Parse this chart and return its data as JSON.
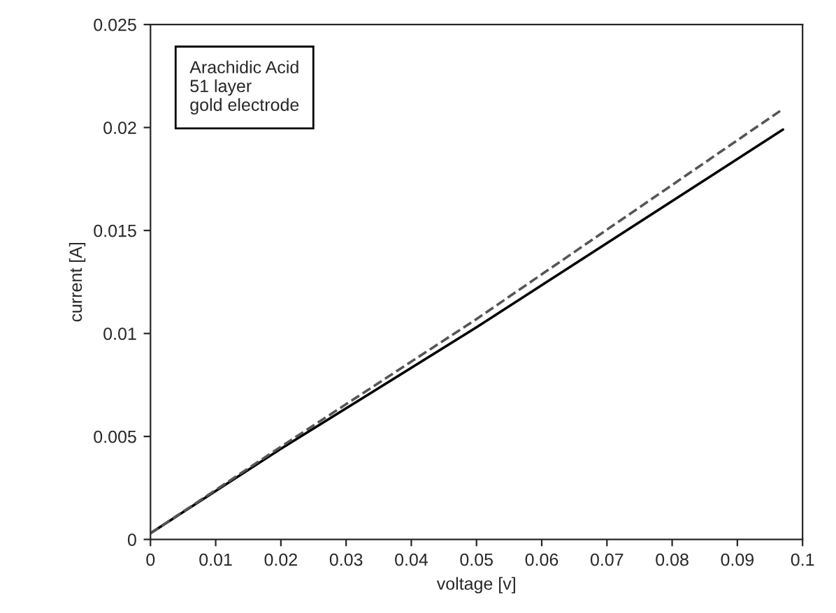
{
  "chart_data": {
    "type": "line",
    "xlabel": "voltage [v]",
    "ylabel": "current [A]",
    "annotations": [
      "Arachidic Acid\n51 layer\ngold electrode"
    ],
    "series": [
      {
        "color": "#000000",
        "line_style": "solid",
        "x": [
          0,
          0.02,
          0.05,
          0.097
        ],
        "values": [
          0.0003,
          0.0044,
          0.0103,
          0.0199
        ]
      },
      {
        "color": "#555555",
        "line_style": "dashed",
        "x": [
          0,
          0.02,
          0.05,
          0.097
        ],
        "values": [
          0.0003,
          0.0045,
          0.0107,
          0.0209
        ]
      }
    ],
    "xlim": [
      0,
      0.1
    ],
    "xticks": [
      0,
      0.01,
      0.02,
      0.03,
      0.04,
      0.05,
      0.06,
      0.07,
      0.08,
      0.09,
      0.1
    ],
    "ylim": [
      0,
      0.025
    ],
    "yticks": [
      0,
      0.005,
      0.01,
      0.015,
      0.02,
      0.025
    ],
    "grid": false,
    "legend": false,
    "marker": "none"
  }
}
